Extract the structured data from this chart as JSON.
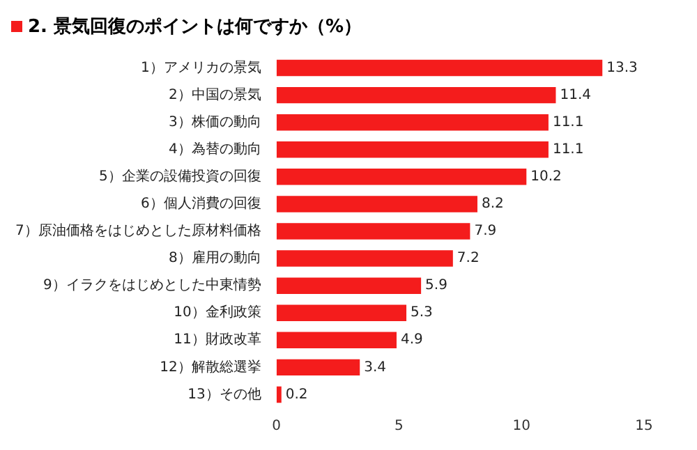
{
  "chart_data": {
    "type": "bar",
    "title": "2. 景気回復のポイントは何ですか（%）",
    "orientation": "horizontal",
    "categories": [
      "1）アメリカの景気",
      "2）中国の景気",
      "3）株価の動向",
      "4）為替の動向",
      "5）企業の設備投資の回復",
      "6）個人消費の回復",
      "7）原油価格をはじめとした原材料価格",
      "8）雇用の動向",
      "9）イラクをはじめとした中東情勢",
      "10）金利政策",
      "11）財政改革",
      "12）解散総選挙",
      "13）その他"
    ],
    "values": [
      13.3,
      11.4,
      11.1,
      11.1,
      10.2,
      8.2,
      7.9,
      7.2,
      5.9,
      5.3,
      4.9,
      3.4,
      0.2
    ],
    "color": "#f41c1c",
    "xlim": [
      0,
      15
    ],
    "xticks": [
      0,
      5,
      10,
      15
    ],
    "grid": false,
    "data_labels": true
  }
}
